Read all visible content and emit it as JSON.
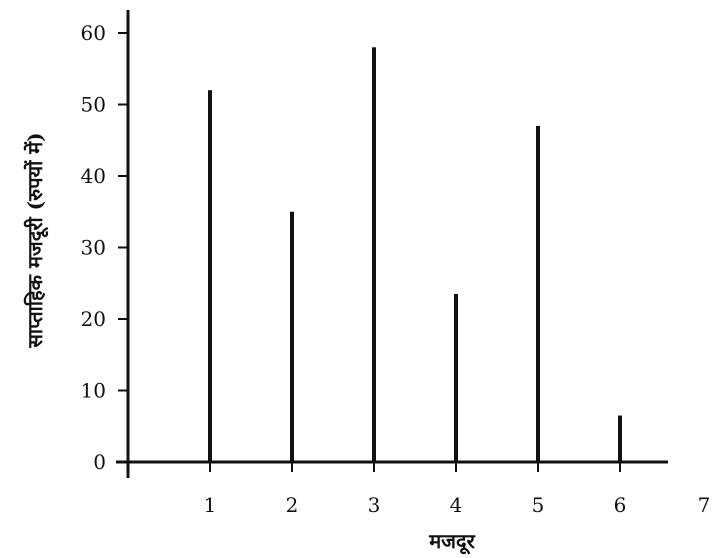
{
  "chart_data": {
    "type": "bar",
    "categories": [
      "1",
      "2",
      "3",
      "4",
      "5",
      "6"
    ],
    "values": [
      52,
      35,
      58,
      23.5,
      47,
      6.5
    ],
    "xlabel": "मजदूर",
    "ylabel": "साप्ताहिक मजदूरी (रुपयों में)",
    "xlim": [
      0,
      7
    ],
    "ylim": [
      0,
      63
    ],
    "x_ticks": [
      "1",
      "2",
      "3",
      "4",
      "5",
      "6",
      "7"
    ],
    "y_ticks": [
      "0",
      "10",
      "20",
      "30",
      "40",
      "50",
      "60"
    ],
    "bar_color": "#111111",
    "grid": false
  }
}
